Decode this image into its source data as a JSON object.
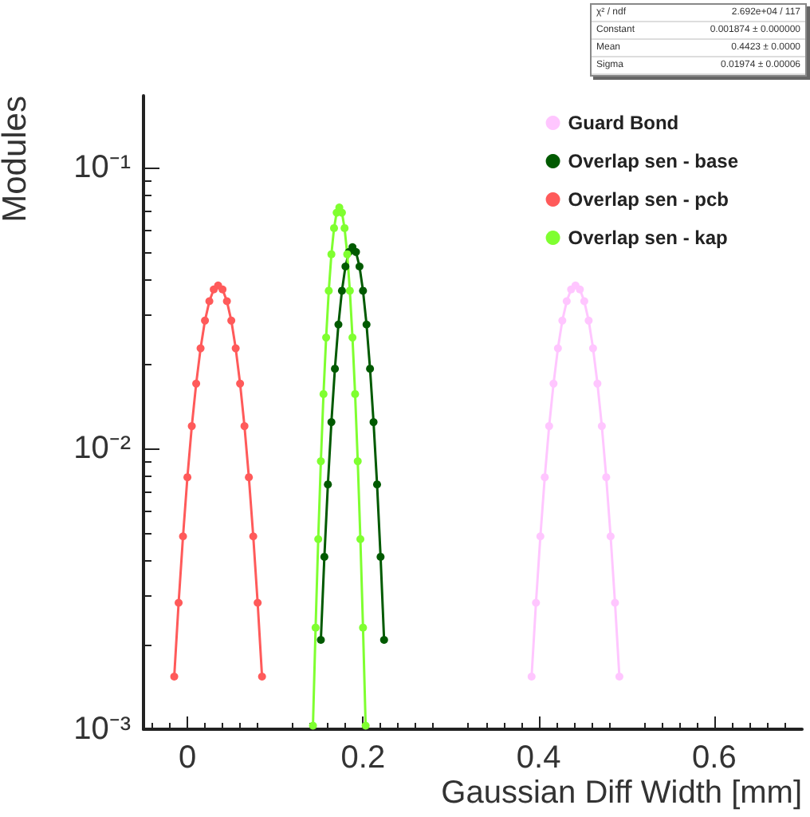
{
  "chart_data": {
    "type": "line",
    "xlabel": "Gaussian Diff Width [mm]",
    "ylabel": "Modules",
    "log": "y",
    "grid": false,
    "legend": "top right",
    "marker": "circle",
    "line_style": "solid",
    "xlim": [
      -0.05,
      0.7
    ],
    "xticks": [
      0,
      0.2,
      0.4,
      0.6
    ],
    "ylim": [
      0.001,
      0.18
    ],
    "yticks": [
      {
        "value": 0.001,
        "label": "10⁻³"
      },
      {
        "value": 0.01,
        "label": "10⁻²"
      },
      {
        "value": 0.1,
        "label": "10⁻¹"
      }
    ],
    "annotations": [
      "χ² / ndf   2.692e+04 / 117",
      "Constant   0.001874 ± 0.000000",
      "Mean   0.4423 ± 0.0000",
      "Sigma   0.01974 ± 0.00006"
    ],
    "series": [
      {
        "name": "Guard Bond",
        "color": "#ffc6ff",
        "x": [
          0.392,
          0.397,
          0.402,
          0.407,
          0.412,
          0.417,
          0.422,
          0.427,
          0.432,
          0.437,
          0.442,
          0.447,
          0.452,
          0.457,
          0.462,
          0.467,
          0.472,
          0.477,
          0.482,
          0.487,
          0.492
        ],
        "values": [
          0.00154,
          0.00282,
          0.00486,
          0.00789,
          0.012,
          0.017,
          0.0227,
          0.0285,
          0.0334,
          0.0368,
          0.038,
          0.0368,
          0.0334,
          0.0285,
          0.0227,
          0.017,
          0.012,
          0.00789,
          0.00486,
          0.00282,
          0.00154
        ]
      },
      {
        "name": "Overlap sen - base",
        "color": "#005a00",
        "x": [
          0.152,
          0.156,
          0.16,
          0.164,
          0.168,
          0.172,
          0.176,
          0.18,
          0.184,
          0.188,
          0.192,
          0.196,
          0.2,
          0.204,
          0.208,
          0.212,
          0.216,
          0.22,
          0.224
        ],
        "values": [
          0.00208,
          0.00411,
          0.00744,
          0.0124,
          0.0192,
          0.0276,
          0.0364,
          0.0444,
          0.05,
          0.052,
          0.05,
          0.0444,
          0.0364,
          0.0276,
          0.0192,
          0.0124,
          0.00744,
          0.00411,
          0.00208
        ]
      },
      {
        "name": "Overlap sen - pcb",
        "color": "#ff5a5a",
        "x": [
          -0.015,
          -0.01,
          -0.005,
          0,
          0.005,
          0.01,
          0.015,
          0.02,
          0.025,
          0.03,
          0.035,
          0.04,
          0.045,
          0.05,
          0.055,
          0.06,
          0.065,
          0.07,
          0.075,
          0.08,
          0.085
        ],
        "values": [
          0.00154,
          0.00282,
          0.00486,
          0.00789,
          0.012,
          0.017,
          0.0227,
          0.0285,
          0.0334,
          0.0368,
          0.038,
          0.0368,
          0.0334,
          0.0285,
          0.0227,
          0.017,
          0.012,
          0.00789,
          0.00486,
          0.00282,
          0.00154
        ]
      },
      {
        "name": "Overlap sen - kap",
        "color": "#7fff30",
        "x": [
          0.143,
          0.146,
          0.149,
          0.152,
          0.155,
          0.158,
          0.161,
          0.164,
          0.167,
          0.17,
          0.173,
          0.176,
          0.179,
          0.182,
          0.185,
          0.188,
          0.191,
          0.194,
          0.197,
          0.2,
          0.203
        ],
        "values": [
          0.00103,
          0.0023,
          0.00475,
          0.009,
          0.0156,
          0.0248,
          0.0364,
          0.0491,
          0.0608,
          0.069,
          0.072,
          0.069,
          0.0608,
          0.0491,
          0.0364,
          0.0248,
          0.0156,
          0.009,
          0.00475,
          0.0023,
          0.00103
        ]
      }
    ]
  }
}
